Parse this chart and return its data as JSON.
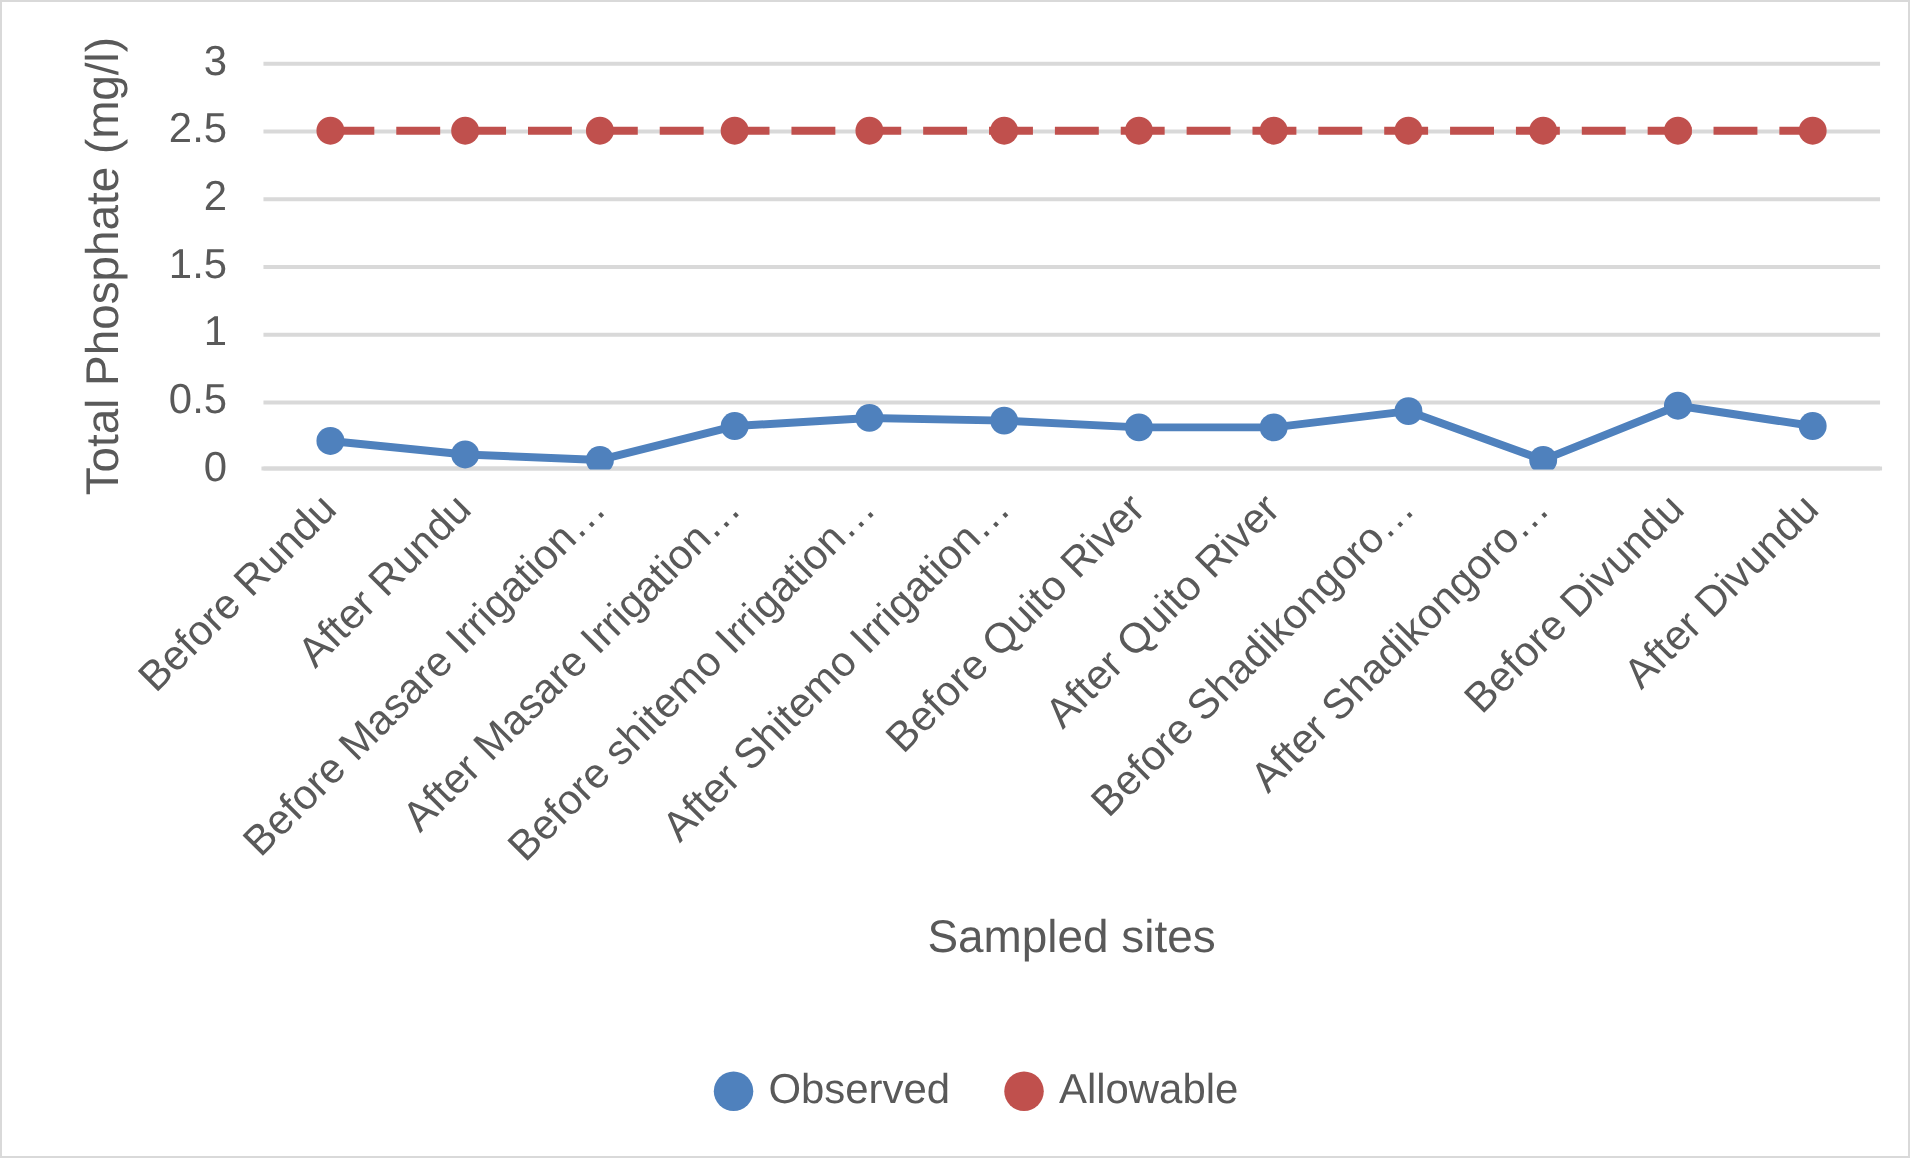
{
  "chart_data": {
    "type": "line",
    "xlabel": "Sampled sites",
    "ylabel": "Total Phosphate (mg/l)",
    "categories": [
      "Before Rundu",
      "After Rundu",
      "Before Masare Irrigation…",
      "After Masare Irrigation…",
      "Before shitemo Irrigation…",
      "After Shitemo Irrigation…",
      "Before Quito River",
      "After Quito River",
      "Before Shadikongoro…",
      "After Shadikongoro…",
      "Before Divundu",
      "After Divundu"
    ],
    "series": [
      {
        "name": "Observed",
        "color": "#4f81bd",
        "line_style": "solid",
        "values": [
          0.21,
          0.11,
          0.07,
          0.32,
          0.38,
          0.36,
          0.31,
          0.31,
          0.43,
          0.07,
          0.47,
          0.32
        ]
      },
      {
        "name": "Allowable",
        "color": "#c0504d",
        "line_style": "dashed",
        "values": [
          2.5,
          2.5,
          2.5,
          2.5,
          2.5,
          2.5,
          2.5,
          2.5,
          2.5,
          2.5,
          2.5,
          2.5
        ]
      }
    ],
    "ylim": [
      0,
      3
    ],
    "yticks": [
      0,
      0.5,
      1,
      1.5,
      2,
      2.5,
      3
    ],
    "grid": "y",
    "legend": "bottom",
    "marker": "circle"
  }
}
